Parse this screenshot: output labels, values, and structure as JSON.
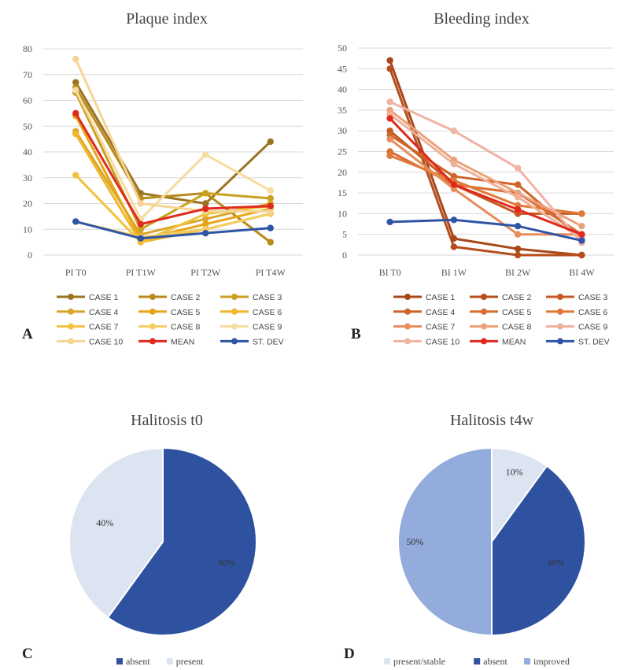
{
  "panels": [
    "A",
    "B",
    "C",
    "D"
  ],
  "chart_data": [
    {
      "type": "line",
      "title": "Plaque index",
      "categories": [
        "PI T0",
        "PI T1W",
        "PI T2W",
        "PI T4W"
      ],
      "ylim": [
        0,
        80
      ],
      "yticks": [
        0,
        10,
        20,
        30,
        40,
        50,
        60,
        70,
        80
      ],
      "grid": true,
      "legend": "bottom",
      "series": [
        {
          "name": "CASE 1",
          "color": "#9a7420",
          "values": [
            67,
            24,
            20,
            44
          ]
        },
        {
          "name": "CASE 2",
          "color": "#b98a1c",
          "values": [
            65,
            22,
            24,
            5
          ]
        },
        {
          "name": "CASE 3",
          "color": "#c9a020",
          "values": [
            63,
            10,
            24,
            22
          ]
        },
        {
          "name": "CASE 4",
          "color": "#d9a62a",
          "values": [
            48,
            8,
            14,
            20
          ]
        },
        {
          "name": "CASE 5",
          "color": "#e6a617",
          "values": [
            54,
            6,
            12,
            18
          ]
        },
        {
          "name": "CASE 6",
          "color": "#efb72a",
          "values": [
            47,
            5,
            10,
            16
          ]
        },
        {
          "name": "CASE 7",
          "color": "#f2c23c",
          "values": [
            31,
            5,
            16,
            19
          ]
        },
        {
          "name": "CASE 8",
          "color": "#f4cd63",
          "values": [
            13,
            7,
            10,
            16
          ]
        },
        {
          "name": "CASE 9",
          "color": "#f7dca0",
          "values": [
            64,
            14,
            39,
            25
          ]
        },
        {
          "name": "CASE 10",
          "color": "#f6d594",
          "values": [
            76,
            20,
            17,
            17
          ]
        },
        {
          "name": "MEAN",
          "color": "#e02a1e",
          "values": [
            55,
            12,
            18,
            19
          ]
        },
        {
          "name": "ST. DEV",
          "color": "#2f55a4",
          "values": [
            13,
            6.5,
            8.5,
            10.5
          ]
        }
      ]
    },
    {
      "type": "line",
      "title": "Bleeding index",
      "categories": [
        "BI T0",
        "BI 1W",
        "BI 2W",
        "BI 4W"
      ],
      "ylim": [
        0,
        50
      ],
      "yticks": [
        0,
        5,
        10,
        15,
        20,
        25,
        30,
        35,
        40,
        45,
        50
      ],
      "grid": true,
      "legend": "bottom",
      "series": [
        {
          "name": "CASE 1",
          "color": "#a8481a",
          "values": [
            47,
            4,
            1.5,
            0
          ]
        },
        {
          "name": "CASE 2",
          "color": "#b64d1c",
          "values": [
            45,
            2,
            0,
            0
          ]
        },
        {
          "name": "CASE 3",
          "color": "#c55a22",
          "values": [
            30,
            17,
            10,
            10
          ]
        },
        {
          "name": "CASE 4",
          "color": "#cf6428",
          "values": [
            29,
            19,
            17,
            4
          ]
        },
        {
          "name": "CASE 5",
          "color": "#d96e32",
          "values": [
            25,
            17,
            15,
            5
          ]
        },
        {
          "name": "CASE 6",
          "color": "#e07a3b",
          "values": [
            24,
            18,
            12,
            10
          ]
        },
        {
          "name": "CASE 7",
          "color": "#e68d5a",
          "values": [
            28,
            16,
            5,
            5
          ]
        },
        {
          "name": "CASE 8",
          "color": "#eca07a",
          "values": [
            35,
            23,
            15,
            7
          ]
        },
        {
          "name": "CASE 9",
          "color": "#efb098",
          "values": [
            34,
            22,
            14,
            4
          ]
        },
        {
          "name": "CASE 10",
          "color": "#f0b3a4",
          "values": [
            37,
            30,
            21,
            3
          ]
        },
        {
          "name": "MEAN",
          "color": "#e02a1e",
          "values": [
            33,
            17,
            11,
            5
          ]
        },
        {
          "name": "ST. DEV",
          "color": "#2f55a4",
          "values": [
            8,
            8.5,
            7,
            3.5
          ]
        }
      ]
    },
    {
      "type": "pie",
      "title": "Halitosis t0",
      "slices": [
        {
          "name": "absent",
          "value": 60,
          "label": "60%",
          "color": "#2f52a0"
        },
        {
          "name": "present",
          "value": 40,
          "label": "40%",
          "color": "#dde4f1"
        }
      ],
      "legend": "bottom"
    },
    {
      "type": "pie",
      "title": "Halitosis t4w",
      "slices": [
        {
          "name": "present/stable",
          "value": 10,
          "label": "10%",
          "color": "#dde4f1"
        },
        {
          "name": "absent",
          "value": 40,
          "label": "40%",
          "color": "#2f52a0"
        },
        {
          "name": "improved",
          "value": 50,
          "label": "50%",
          "color": "#94acdb"
        }
      ],
      "legend": "bottom"
    }
  ]
}
